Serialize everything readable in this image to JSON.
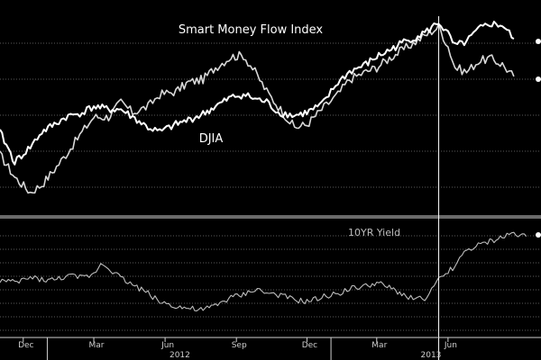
{
  "chart_data": [
    {
      "type": "line",
      "panel": "upper",
      "x_range": [
        "2011-11-01",
        "2013-09-15"
      ],
      "grid": true,
      "legend": "none",
      "annotations": [
        "Smart Money Flow Index",
        "DJIA"
      ],
      "series": [
        {
          "name": "Smart Money Flow Index",
          "color": "#d8d8d8",
          "points": [
            [
              "2011-11-01",
              0.3
            ],
            [
              "2011-11-20",
              0.15
            ],
            [
              "2011-12-10",
              0.05
            ],
            [
              "2011-12-25",
              0.1
            ],
            [
              "2012-01-10",
              0.2
            ],
            [
              "2012-01-25",
              0.3
            ],
            [
              "2012-02-15",
              0.45
            ],
            [
              "2012-03-01",
              0.55
            ],
            [
              "2012-03-20",
              0.55
            ],
            [
              "2012-04-05",
              0.65
            ],
            [
              "2012-04-20",
              0.58
            ],
            [
              "2012-05-10",
              0.62
            ],
            [
              "2012-05-25",
              0.7
            ],
            [
              "2012-06-15",
              0.72
            ],
            [
              "2012-07-01",
              0.78
            ],
            [
              "2012-07-20",
              0.8
            ],
            [
              "2012-08-05",
              0.88
            ],
            [
              "2012-08-25",
              0.95
            ],
            [
              "2012-09-10",
              0.96
            ],
            [
              "2012-09-25",
              0.85
            ],
            [
              "2012-10-10",
              0.72
            ],
            [
              "2012-10-25",
              0.62
            ],
            [
              "2012-11-15",
              0.48
            ],
            [
              "2012-12-01",
              0.5
            ],
            [
              "2012-12-20",
              0.6
            ],
            [
              "2013-01-10",
              0.7
            ],
            [
              "2013-01-25",
              0.8
            ],
            [
              "2013-02-15",
              0.85
            ],
            [
              "2013-03-01",
              0.88
            ],
            [
              "2013-03-20",
              0.95
            ],
            [
              "2013-04-05",
              1.0
            ],
            [
              "2013-04-20",
              1.05
            ],
            [
              "2013-05-05",
              1.1
            ],
            [
              "2013-05-20",
              1.15
            ],
            [
              "2013-06-01",
              1.02
            ],
            [
              "2013-06-10",
              0.88
            ],
            [
              "2013-06-25",
              0.85
            ],
            [
              "2013-07-10",
              0.92
            ],
            [
              "2013-07-25",
              0.94
            ],
            [
              "2013-08-10",
              0.9
            ],
            [
              "2013-08-25",
              0.82
            ]
          ]
        },
        {
          "name": "DJIA",
          "color": "#ffffff",
          "points": [
            [
              "2011-11-01",
              0.45
            ],
            [
              "2011-11-20",
              0.25
            ],
            [
              "2011-12-10",
              0.35
            ],
            [
              "2011-12-25",
              0.45
            ],
            [
              "2012-01-10",
              0.5
            ],
            [
              "2012-01-25",
              0.55
            ],
            [
              "2012-02-15",
              0.58
            ],
            [
              "2012-03-01",
              0.62
            ],
            [
              "2012-03-20",
              0.6
            ],
            [
              "2012-04-05",
              0.6
            ],
            [
              "2012-04-20",
              0.55
            ],
            [
              "2012-05-10",
              0.48
            ],
            [
              "2012-05-25",
              0.45
            ],
            [
              "2012-06-15",
              0.5
            ],
            [
              "2012-07-01",
              0.53
            ],
            [
              "2012-07-20",
              0.57
            ],
            [
              "2012-08-05",
              0.62
            ],
            [
              "2012-08-25",
              0.68
            ],
            [
              "2012-09-10",
              0.7
            ],
            [
              "2012-09-25",
              0.67
            ],
            [
              "2012-10-10",
              0.65
            ],
            [
              "2012-10-25",
              0.58
            ],
            [
              "2012-11-15",
              0.56
            ],
            [
              "2012-12-01",
              0.58
            ],
            [
              "2012-12-20",
              0.63
            ],
            [
              "2013-01-10",
              0.78
            ],
            [
              "2013-01-25",
              0.85
            ],
            [
              "2013-02-15",
              0.9
            ],
            [
              "2013-03-01",
              0.95
            ],
            [
              "2013-03-20",
              1.0
            ],
            [
              "2013-04-05",
              1.05
            ],
            [
              "2013-04-20",
              1.08
            ],
            [
              "2013-05-05",
              1.12
            ],
            [
              "2013-05-20",
              1.18
            ],
            [
              "2013-06-01",
              1.1
            ],
            [
              "2013-06-10",
              1.02
            ],
            [
              "2013-06-25",
              1.05
            ],
            [
              "2013-07-10",
              1.13
            ],
            [
              "2013-07-25",
              1.17
            ],
            [
              "2013-08-10",
              1.16
            ],
            [
              "2013-08-25",
              1.07
            ]
          ]
        }
      ]
    },
    {
      "type": "line",
      "panel": "lower",
      "x_range": [
        "2011-11-01",
        "2013-09-15"
      ],
      "grid": true,
      "legend": "none",
      "annotations": [
        "10YR Yield"
      ],
      "series": [
        {
          "name": "10YR Yield",
          "color": "#bdbdbd",
          "points": [
            [
              "2011-11-01",
              0.55
            ],
            [
              "2011-11-20",
              0.52
            ],
            [
              "2011-12-10",
              0.58
            ],
            [
              "2011-12-25",
              0.56
            ],
            [
              "2012-01-10",
              0.55
            ],
            [
              "2012-01-25",
              0.6
            ],
            [
              "2012-02-15",
              0.58
            ],
            [
              "2012-03-01",
              0.62
            ],
            [
              "2012-03-10",
              0.75
            ],
            [
              "2012-03-20",
              0.7
            ],
            [
              "2012-04-05",
              0.58
            ],
            [
              "2012-04-20",
              0.5
            ],
            [
              "2012-05-10",
              0.4
            ],
            [
              "2012-05-25",
              0.3
            ],
            [
              "2012-06-15",
              0.25
            ],
            [
              "2012-07-01",
              0.22
            ],
            [
              "2012-07-20",
              0.2
            ],
            [
              "2012-08-05",
              0.26
            ],
            [
              "2012-08-25",
              0.35
            ],
            [
              "2012-09-10",
              0.38
            ],
            [
              "2012-09-25",
              0.45
            ],
            [
              "2012-10-10",
              0.4
            ],
            [
              "2012-10-25",
              0.38
            ],
            [
              "2012-11-15",
              0.32
            ],
            [
              "2012-12-01",
              0.3
            ],
            [
              "2012-12-20",
              0.35
            ],
            [
              "2013-01-10",
              0.4
            ],
            [
              "2013-01-25",
              0.45
            ],
            [
              "2013-02-15",
              0.48
            ],
            [
              "2013-03-01",
              0.52
            ],
            [
              "2013-03-20",
              0.45
            ],
            [
              "2013-04-05",
              0.38
            ],
            [
              "2013-04-20",
              0.33
            ],
            [
              "2013-05-05",
              0.35
            ],
            [
              "2013-05-20",
              0.55
            ],
            [
              "2013-06-01",
              0.65
            ],
            [
              "2013-06-10",
              0.72
            ],
            [
              "2013-06-25",
              0.9
            ],
            [
              "2013-07-10",
              0.95
            ],
            [
              "2013-07-25",
              1.0
            ],
            [
              "2013-08-10",
              1.05
            ],
            [
              "2013-08-25",
              1.1
            ],
            [
              "2013-09-10",
              1.06
            ]
          ]
        }
      ]
    }
  ],
  "x_axis": {
    "month_ticks": [
      {
        "label": "Dec",
        "date": "2011-12-01"
      },
      {
        "label": "Mar",
        "date": "2012-03-01"
      },
      {
        "label": "Jun",
        "date": "2012-06-01"
      },
      {
        "label": "Sep",
        "date": "2012-09-01"
      },
      {
        "label": "Dec",
        "date": "2012-12-01"
      },
      {
        "label": "Mar",
        "date": "2013-03-01"
      },
      {
        "label": "Jun",
        "date": "2013-06-01"
      }
    ],
    "year_labels": [
      {
        "label": "2012",
        "date": "2012-06-20"
      },
      {
        "label": "2013",
        "date": "2013-05-10"
      }
    ]
  },
  "cursor_date": "2013-05-20",
  "colors": {
    "background": "#000000",
    "grid": "#5a5a5a",
    "axis": "#cfcfcf",
    "cursor": "#ffffff"
  }
}
